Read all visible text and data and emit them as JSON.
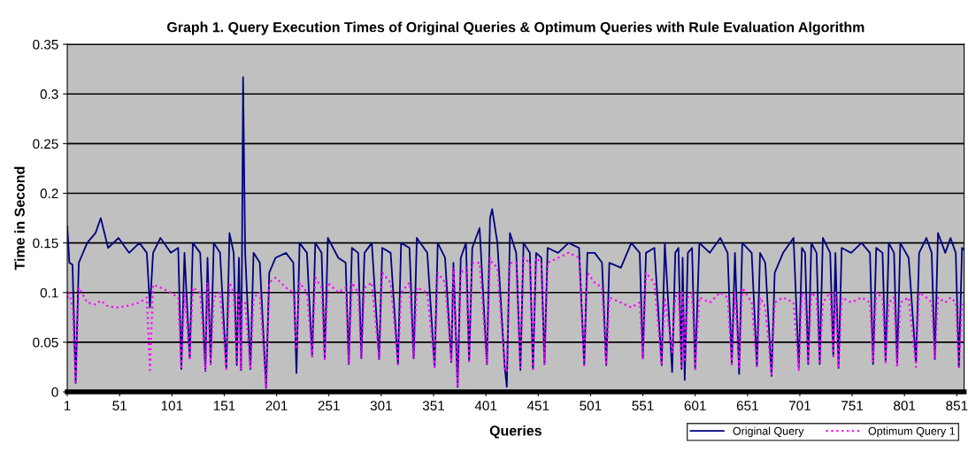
{
  "chart_data": {
    "type": "line",
    "title": "Graph 1. Query Execution Times of Original Queries & Optimum Queries with Rule Evaluation Algorithm",
    "xlabel": "Queries",
    "ylabel": "Time in Second",
    "xlim": [
      1,
      858
    ],
    "xticks": [
      1,
      51,
      101,
      151,
      201,
      251,
      301,
      351,
      401,
      451,
      501,
      551,
      601,
      651,
      701,
      751,
      801,
      851
    ],
    "ylim": [
      0,
      0.35
    ],
    "yticks": [
      0,
      0.05,
      0.1,
      0.15,
      0.2,
      0.25,
      0.3,
      0.35
    ],
    "grid": "y",
    "legend": "bottom right",
    "marker": "none",
    "x": [
      1,
      3,
      6,
      9,
      12,
      20,
      28,
      33,
      40,
      50,
      60,
      70,
      77,
      80,
      83,
      90,
      100,
      107,
      110,
      113,
      118,
      121,
      128,
      133,
      135,
      138,
      141,
      147,
      153,
      156,
      160,
      163,
      165,
      167,
      168,
      169,
      170,
      171,
      176,
      179,
      185,
      191,
      194,
      200,
      210,
      217,
      220,
      223,
      230,
      235,
      238,
      244,
      247,
      250,
      260,
      267,
      270,
      273,
      279,
      282,
      285,
      292,
      299,
      302,
      310,
      317,
      320,
      328,
      332,
      335,
      345,
      352,
      355,
      362,
      368,
      370,
      374,
      377,
      382,
      385,
      388,
      395,
      402,
      405,
      407,
      412,
      419,
      421,
      424,
      430,
      434,
      437,
      443,
      446,
      449,
      454,
      457,
      460,
      470,
      480,
      490,
      495,
      498,
      505,
      512,
      516,
      519,
      530,
      540,
      548,
      551,
      554,
      562,
      569,
      572,
      579,
      582,
      585,
      588,
      589,
      591,
      594,
      598,
      601,
      605,
      615,
      625,
      632,
      636,
      639,
      643,
      646,
      655,
      660,
      663,
      668,
      674,
      677,
      685,
      695,
      700,
      703,
      706,
      709,
      712,
      717,
      720,
      723,
      730,
      733,
      735,
      738,
      741,
      750,
      760,
      768,
      771,
      774,
      780,
      783,
      786,
      791,
      794,
      797,
      805,
      812,
      815,
      822,
      827,
      830,
      833,
      840,
      845,
      850,
      853,
      856,
      858
    ],
    "series": [
      {
        "name": "Original Query",
        "color": "#000080",
        "line_style": "solid",
        "values": [
          0.167,
          0.13,
          0.128,
          0.009,
          0.13,
          0.15,
          0.16,
          0.175,
          0.145,
          0.155,
          0.14,
          0.15,
          0.14,
          0.085,
          0.14,
          0.155,
          0.14,
          0.145,
          0.023,
          0.14,
          0.034,
          0.15,
          0.14,
          0.021,
          0.135,
          0.028,
          0.15,
          0.14,
          0.023,
          0.16,
          0.14,
          0.027,
          0.135,
          0.022,
          0.14,
          0.317,
          0.227,
          0.14,
          0.023,
          0.14,
          0.13,
          0.004,
          0.12,
          0.135,
          0.14,
          0.13,
          0.019,
          0.15,
          0.14,
          0.036,
          0.15,
          0.14,
          0.033,
          0.155,
          0.135,
          0.13,
          0.028,
          0.145,
          0.14,
          0.034,
          0.14,
          0.15,
          0.033,
          0.145,
          0.14,
          0.028,
          0.15,
          0.145,
          0.034,
          0.155,
          0.14,
          0.025,
          0.15,
          0.135,
          0.03,
          0.13,
          0.005,
          0.135,
          0.15,
          0.031,
          0.145,
          0.165,
          0.028,
          0.175,
          0.184,
          0.15,
          0.025,
          0.005,
          0.16,
          0.14,
          0.022,
          0.15,
          0.14,
          0.023,
          0.14,
          0.135,
          0.028,
          0.145,
          0.14,
          0.15,
          0.145,
          0.027,
          0.14,
          0.14,
          0.13,
          0.027,
          0.13,
          0.125,
          0.15,
          0.14,
          0.034,
          0.14,
          0.145,
          0.027,
          0.15,
          0.02,
          0.14,
          0.145,
          0.023,
          0.135,
          0.012,
          0.14,
          0.145,
          0.023,
          0.15,
          0.14,
          0.155,
          0.14,
          0.028,
          0.14,
          0.018,
          0.15,
          0.14,
          0.026,
          0.14,
          0.13,
          0.016,
          0.12,
          0.14,
          0.155,
          0.025,
          0.145,
          0.14,
          0.028,
          0.15,
          0.14,
          0.028,
          0.155,
          0.14,
          0.036,
          0.14,
          0.024,
          0.145,
          0.14,
          0.15,
          0.14,
          0.028,
          0.145,
          0.14,
          0.03,
          0.15,
          0.14,
          0.028,
          0.15,
          0.135,
          0.03,
          0.14,
          0.155,
          0.14,
          0.033,
          0.16,
          0.14,
          0.155,
          0.14,
          0.025,
          0.145,
          0.143
        ]
      },
      {
        "name": "Optimum Query 1",
        "color": "#ff00ff",
        "line_style": "dotted",
        "values": [
          0.095,
          0.1,
          0.085,
          0.01,
          0.105,
          0.09,
          0.088,
          0.092,
          0.086,
          0.085,
          0.087,
          0.09,
          0.095,
          0.022,
          0.108,
          0.105,
          0.1,
          0.095,
          0.023,
          0.1,
          0.034,
          0.105,
          0.1,
          0.021,
          0.11,
          0.028,
          0.095,
          0.1,
          0.023,
          0.11,
          0.1,
          0.027,
          0.1,
          0.022,
          0.09,
          0.09,
          0.09,
          0.09,
          0.023,
          0.095,
          0.1,
          0.004,
          0.11,
          0.115,
          0.105,
          0.1,
          0.043,
          0.11,
          0.1,
          0.036,
          0.115,
          0.105,
          0.033,
          0.11,
          0.1,
          0.105,
          0.028,
          0.11,
          0.1,
          0.034,
          0.105,
          0.11,
          0.033,
          0.12,
          0.11,
          0.028,
          0.1,
          0.11,
          0.034,
          0.105,
          0.1,
          0.025,
          0.12,
          0.11,
          0.03,
          0.125,
          0.005,
          0.12,
          0.125,
          0.031,
          0.13,
          0.13,
          0.028,
          0.135,
          0.13,
          0.125,
          0.025,
          0.02,
          0.13,
          0.13,
          0.022,
          0.135,
          0.13,
          0.023,
          0.135,
          0.13,
          0.028,
          0.13,
          0.135,
          0.14,
          0.135,
          0.027,
          0.12,
          0.11,
          0.105,
          0.027,
          0.095,
          0.09,
          0.085,
          0.09,
          0.034,
          0.12,
          0.11,
          0.027,
          0.095,
          0.04,
          0.095,
          0.1,
          0.023,
          0.1,
          0.03,
          0.095,
          0.1,
          0.023,
          0.095,
          0.09,
          0.1,
          0.095,
          0.028,
          0.1,
          0.025,
          0.105,
          0.09,
          0.026,
          0.095,
          0.085,
          0.016,
          0.09,
          0.095,
          0.09,
          0.022,
          0.1,
          0.095,
          0.028,
          0.1,
          0.095,
          0.028,
          0.09,
          0.1,
          0.036,
          0.1,
          0.024,
          0.095,
          0.09,
          0.095,
          0.09,
          0.03,
          0.1,
          0.095,
          0.03,
          0.09,
          0.095,
          0.025,
          0.09,
          0.095,
          0.025,
          0.1,
          0.095,
          0.09,
          0.033,
          0.095,
          0.09,
          0.095,
          0.09,
          0.025,
          0.09,
          0.088
        ]
      }
    ]
  }
}
